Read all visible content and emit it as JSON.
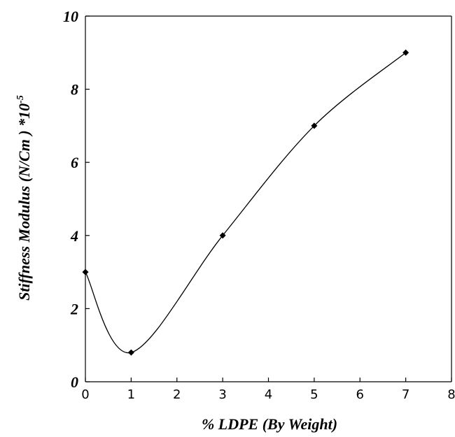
{
  "chart_data": {
    "type": "line",
    "xlabel": "% LDPE (By Weight)",
    "ylabel": "Stiffness Modulus (N/Cm ) *10",
    "ylabel_superscript": "-5",
    "xlim": [
      0,
      8
    ],
    "ylim": [
      0,
      10
    ],
    "x_ticks": [
      "0",
      "1",
      "2",
      "3",
      "4",
      "5",
      "6",
      "7",
      "8"
    ],
    "y_ticks": [
      "0",
      "2",
      "4",
      "6",
      "8",
      "10"
    ],
    "grid": false,
    "legend": "none",
    "line_color": "#000000",
    "marker": "diamond",
    "series": [
      {
        "x": [
          0,
          1,
          3,
          5,
          7
        ],
        "y": [
          3,
          0.8,
          4,
          7,
          9
        ]
      }
    ]
  }
}
